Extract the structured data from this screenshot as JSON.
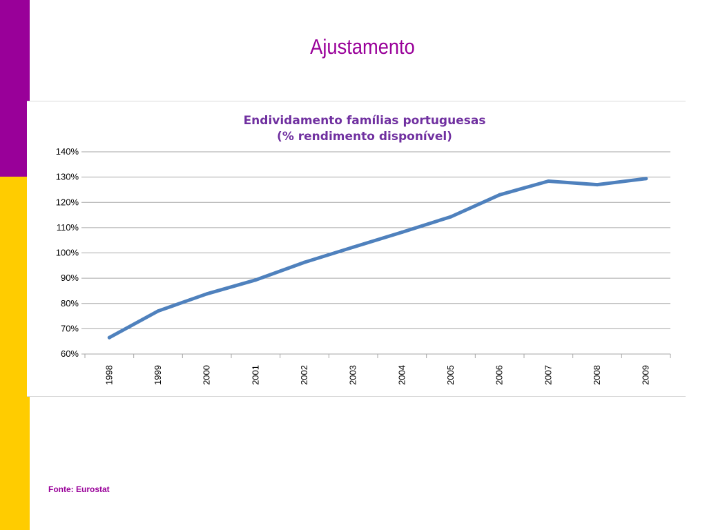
{
  "slide": {
    "title": "Ajustamento",
    "source": "Fonte: Eurostat"
  },
  "colors": {
    "bar_top": "#990099",
    "bar_bottom": "#ffcc00",
    "title": "#990099",
    "chart_title": "#7030a0",
    "series_line": "#4f81bd",
    "gridline": "#a6a6a6",
    "source": "#990099"
  },
  "chart_data": {
    "type": "line",
    "title_lines": [
      "Endividamento famílias portuguesas",
      "(% rendimento disponível)"
    ],
    "xlabel": "",
    "ylabel": "",
    "categories": [
      "1998",
      "1999",
      "2000",
      "2001",
      "2002",
      "2003",
      "2004",
      "2005",
      "2006",
      "2007",
      "2008",
      "2009"
    ],
    "series": [
      {
        "values": [
          66.5,
          77,
          83.8,
          89.3,
          96.3,
          102.3,
          108.2,
          114.3,
          123,
          128.4,
          127,
          129.4
        ]
      }
    ],
    "ylim": [
      60,
      140
    ],
    "y_ticks": [
      60,
      70,
      80,
      90,
      100,
      110,
      120,
      130,
      140
    ],
    "y_tick_labels": [
      "60%",
      "70%",
      "80%",
      "90%",
      "100%",
      "110%",
      "120%",
      "130%",
      "140%"
    ],
    "grid": true,
    "legend": "none"
  }
}
